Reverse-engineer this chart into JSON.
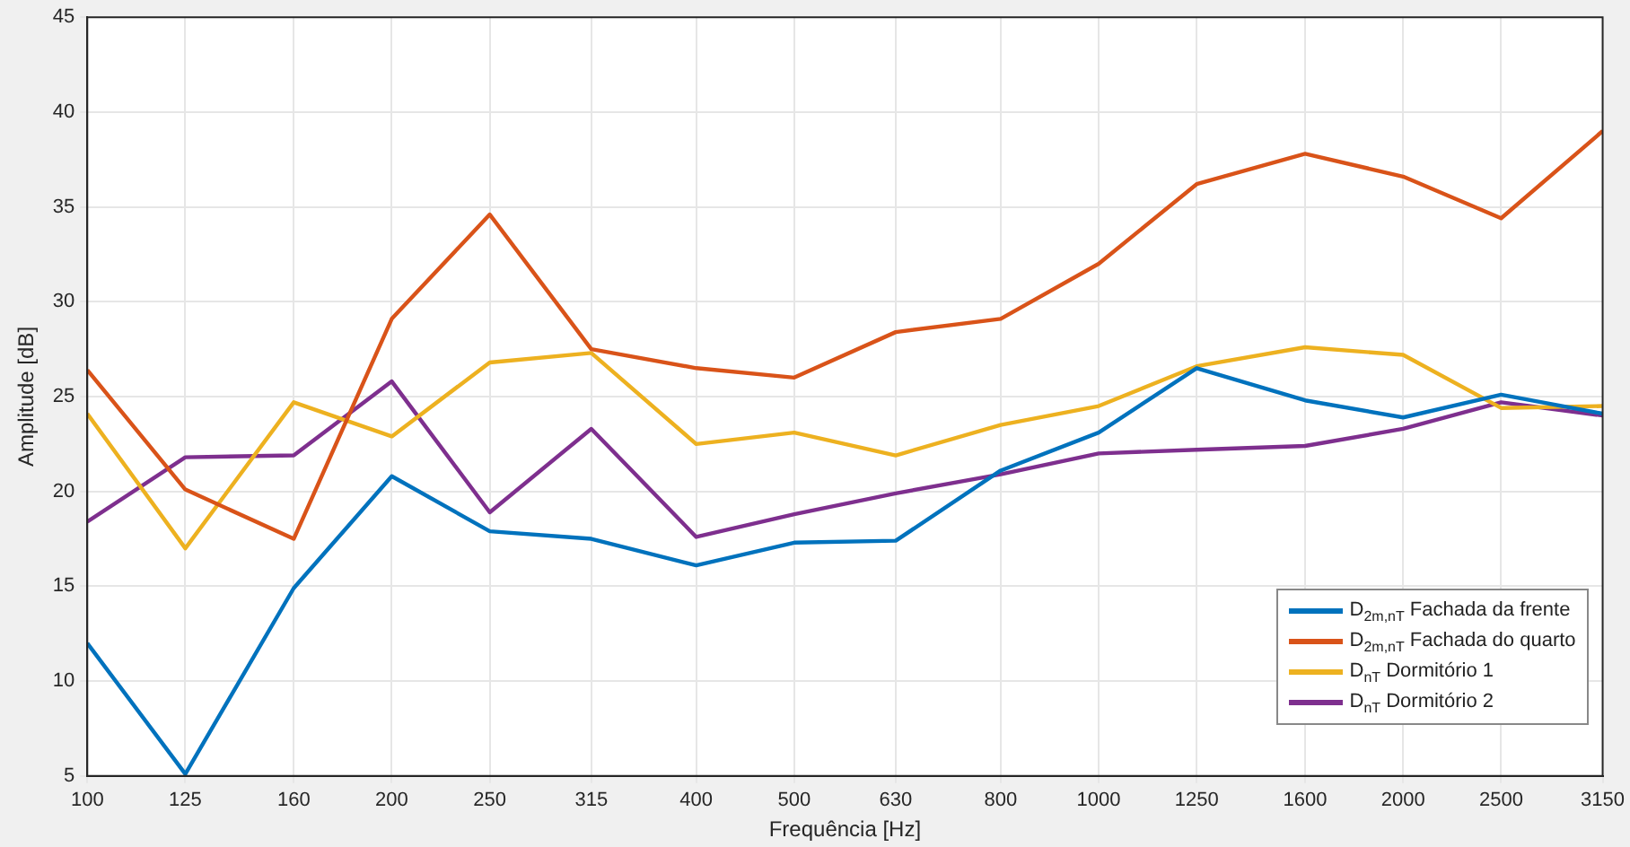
{
  "chart_data": {
    "type": "line",
    "xlabel": "Frequência [Hz]",
    "ylabel": "Amplitude [dB]",
    "x": [
      100,
      125,
      160,
      200,
      250,
      315,
      400,
      500,
      630,
      800,
      1000,
      1250,
      1600,
      2000,
      2500,
      3150
    ],
    "log": "x",
    "xlim": [
      100,
      3150
    ],
    "xticks": [
      100,
      125,
      160,
      200,
      250,
      315,
      400,
      500,
      630,
      800,
      1000,
      1250,
      1600,
      2000,
      2500,
      3150
    ],
    "ylim": [
      5,
      45
    ],
    "yticks": [
      5,
      10,
      15,
      20,
      25,
      30,
      35,
      40,
      45
    ],
    "grid": true,
    "legend": "bottom right",
    "marker": "none",
    "line_style": "solid",
    "series": [
      {
        "name": "D$_{2m,nT}$ Fachada da frente",
        "color": "#0072bd",
        "values": [
          12,
          5.1,
          14.9,
          20.8,
          17.9,
          17.5,
          16.1,
          17.3,
          17.4,
          21.1,
          23.1,
          26.5,
          24.8,
          23.9,
          25.1,
          24.1
        ]
      },
      {
        "name": "D$_{2m,nT}$ Fachada do quarto",
        "color": "#d95319",
        "values": [
          26.4,
          20.1,
          17.5,
          29.1,
          34.6,
          27.5,
          26.5,
          26.0,
          28.4,
          29.1,
          32.0,
          36.2,
          37.8,
          36.6,
          34.4,
          39.0
        ]
      },
      {
        "name": "D$_{nT}$ Dormitório 1",
        "color": "#edb120",
        "values": [
          24.1,
          17.0,
          24.7,
          22.9,
          26.8,
          27.3,
          22.5,
          23.1,
          21.9,
          23.5,
          24.5,
          26.6,
          27.6,
          27.2,
          24.4,
          24.5
        ]
      },
      {
        "name": "D$_{nT}$ Dormitório 2",
        "color": "#7e2f8e",
        "values": [
          18.4,
          21.8,
          21.9,
          25.8,
          18.9,
          23.3,
          17.6,
          18.8,
          19.9,
          20.9,
          22.0,
          22.2,
          22.4,
          23.3,
          24.7,
          24.0
        ]
      }
    ]
  }
}
